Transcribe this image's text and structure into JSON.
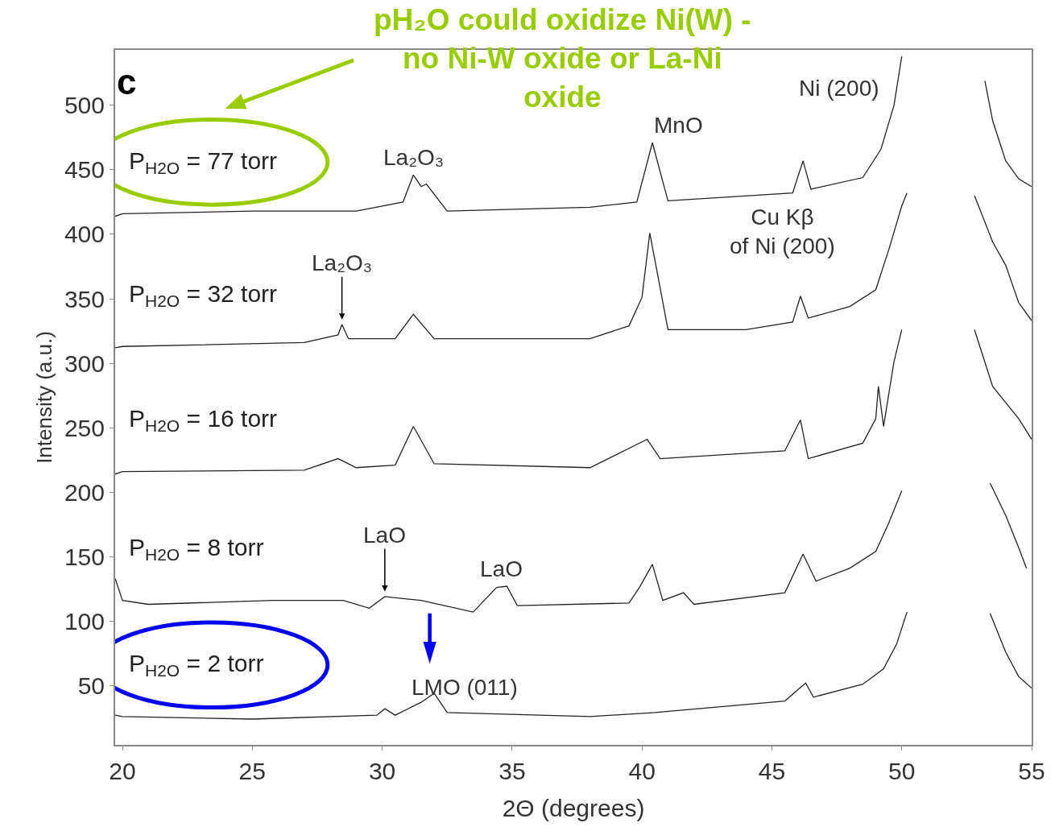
{
  "chart_data": {
    "type": "line",
    "title": "pH₂O could oxidize Ni(W) -\nno Ni-W oxide or La-Ni\noxide",
    "xlabel": "2Θ (degrees)",
    "ylabel": "Intensity (a.u.)",
    "xlim": [
      19.72,
      55
    ],
    "xticks": [
      20,
      25,
      30,
      35,
      40,
      45,
      50,
      55
    ],
    "ylim": [
      4,
      543
    ],
    "yticks": [
      50,
      100,
      150,
      200,
      250,
      300,
      350,
      400,
      450,
      500
    ],
    "legend": false,
    "marker": "none",
    "line_style": "solid",
    "series": [
      {
        "name": "P$_{H2O}$ = 77 torr",
        "color": "#222222",
        "x": [
          19.72,
          20,
          25,
          29,
          30.8,
          31.2,
          31.5,
          31.7,
          32.5,
          38,
          39.8,
          40.4,
          41,
          45.8,
          46.2,
          46.5,
          48.5,
          49.2,
          49.7,
          50.0,
          51.5,
          53.2,
          53.5,
          54,
          54.5,
          55
        ],
        "values": [
          414,
          416,
          418,
          418,
          425,
          446,
          437,
          439,
          418,
          421,
          425,
          471,
          426,
          432,
          457,
          435,
          444,
          466,
          500,
          538,
          null,
          519,
          488,
          457,
          443,
          437
        ]
      },
      {
        "name": "P$_{H2O}$ = 32 torr",
        "color": "#222222",
        "x": [
          19.72,
          20,
          27,
          28.3,
          28.45,
          28.7,
          30.5,
          31.2,
          32,
          38,
          39.5,
          40.0,
          40.3,
          40.6,
          41,
          44,
          45.8,
          46.1,
          46.4,
          48,
          49,
          49.5,
          50,
          50.2,
          51.5,
          52.8,
          53.5,
          54,
          54.5,
          55
        ],
        "values": [
          312,
          313,
          316,
          322,
          330,
          319,
          319,
          338,
          319,
          319,
          329,
          351,
          401,
          369,
          326,
          326,
          332,
          352,
          335,
          344,
          357,
          388,
          422,
          432,
          null,
          430,
          394,
          376,
          347,
          333
        ]
      },
      {
        "name": "P$_{H2O}$ = 16 torr",
        "color": "#222222",
        "x": [
          19.72,
          20,
          27,
          28.3,
          29,
          30.5,
          31.2,
          32,
          38,
          40.2,
          40.7,
          45.5,
          46.1,
          46.4,
          48.5,
          49,
          49.1,
          49.3,
          49.7,
          50,
          51.5,
          52.8,
          53.5,
          54.5,
          55
        ],
        "values": [
          214,
          216,
          217,
          226,
          219,
          221,
          251,
          222,
          219,
          241,
          226,
          232,
          256,
          226,
          238,
          257,
          282,
          251,
          301,
          326,
          null,
          326,
          282,
          257,
          241
        ]
      },
      {
        "name": "P$_{H2O}$ = 8 torr",
        "color": "#222222",
        "x": [
          19.72,
          20,
          21,
          25.8,
          28.5,
          29.5,
          30.1,
          31.5,
          33.5,
          34.4,
          34.8,
          35.2,
          39.5,
          39.9,
          40.4,
          40.8,
          41.6,
          42,
          45.5,
          46.2,
          46.7,
          48,
          49,
          49.5,
          50,
          51.5,
          53.4,
          54,
          54.5,
          54.8
        ],
        "values": [
          133,
          116,
          113,
          116,
          116,
          110,
          119,
          116,
          107,
          126,
          127,
          112,
          114,
          126,
          144,
          116,
          122,
          113,
          122,
          152,
          131,
          141,
          154,
          176,
          201,
          null,
          207,
          182,
          157,
          141
        ]
      },
      {
        "name": "P$_{H2O}$ = 2 torr",
        "color": "#222222",
        "x": [
          19.72,
          20,
          25,
          29.8,
          30.1,
          30.5,
          31.5,
          32.0,
          32.5,
          38,
          40.5,
          45.5,
          46.3,
          46.6,
          48.5,
          49.3,
          49.8,
          50.2,
          51.5,
          53.4,
          54,
          54.5,
          55
        ],
        "values": [
          27,
          26,
          24,
          27,
          32,
          27,
          37,
          44,
          29,
          26,
          29,
          38,
          52,
          41,
          51,
          63,
          82,
          107,
          null,
          106,
          76,
          57,
          48
        ]
      }
    ],
    "annotations": [
      "c",
      {
        "text": "La₂O₃",
        "x": 31.2,
        "y": 446
      },
      {
        "text": "MnO",
        "x": 40.4,
        "y": 471
      },
      {
        "text": "Ni (200)",
        "x": 49.7,
        "y": 500
      },
      {
        "text": "La₂O₃",
        "x": 28.45,
        "y": 330
      },
      {
        "text": "Cu Kβ\nof Ni (200)",
        "x": 46.1,
        "y": 352
      },
      {
        "text": "LaO",
        "x": 30.1,
        "y": 119
      },
      {
        "text": "LaO",
        "x": 34.6,
        "y": 127
      },
      {
        "text": "LMO (011)",
        "x": 32.0,
        "y": 44
      }
    ]
  }
}
